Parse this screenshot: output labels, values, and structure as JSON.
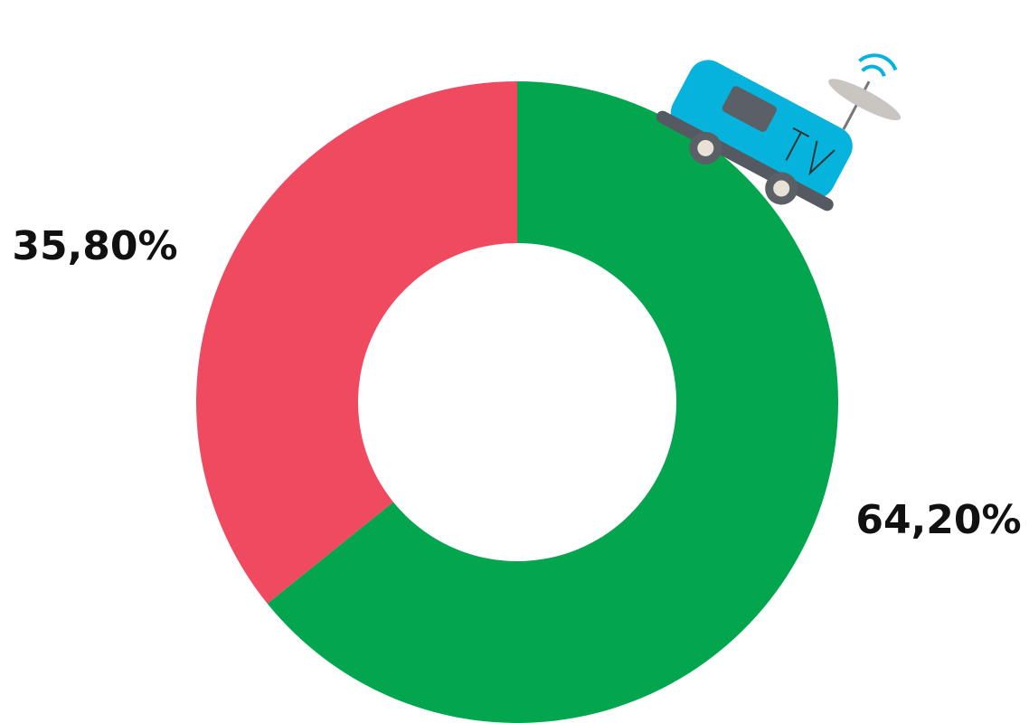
{
  "chart_data": {
    "type": "donut",
    "values": [
      64.2,
      35.8
    ],
    "value_labels": [
      "64,20%",
      "35,80%"
    ],
    "colors": [
      "#03a64f",
      "#ef4a60"
    ]
  }
}
